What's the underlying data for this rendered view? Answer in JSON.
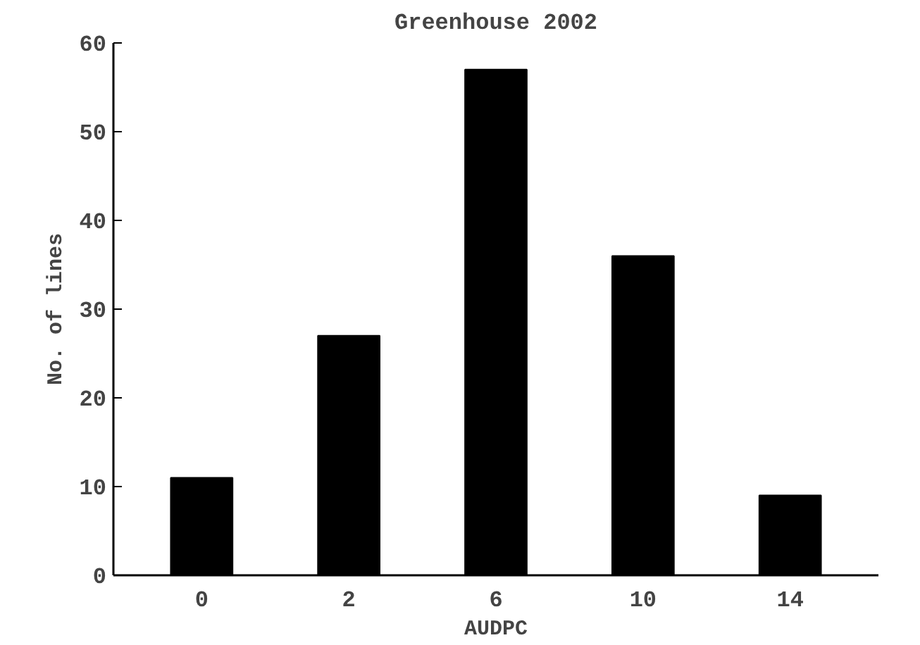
{
  "chart_data": {
    "type": "bar",
    "title": "Greenhouse 2002",
    "xlabel": "AUDPC",
    "ylabel": "No. of lines",
    "categories": [
      "0",
      "2",
      "6",
      "10",
      "14"
    ],
    "values": [
      11,
      27,
      57,
      36,
      9
    ],
    "color": "#000000",
    "ylim": [
      0,
      60
    ],
    "yticks": [
      0,
      10,
      20,
      30,
      40,
      50,
      60
    ],
    "grid": false
  }
}
